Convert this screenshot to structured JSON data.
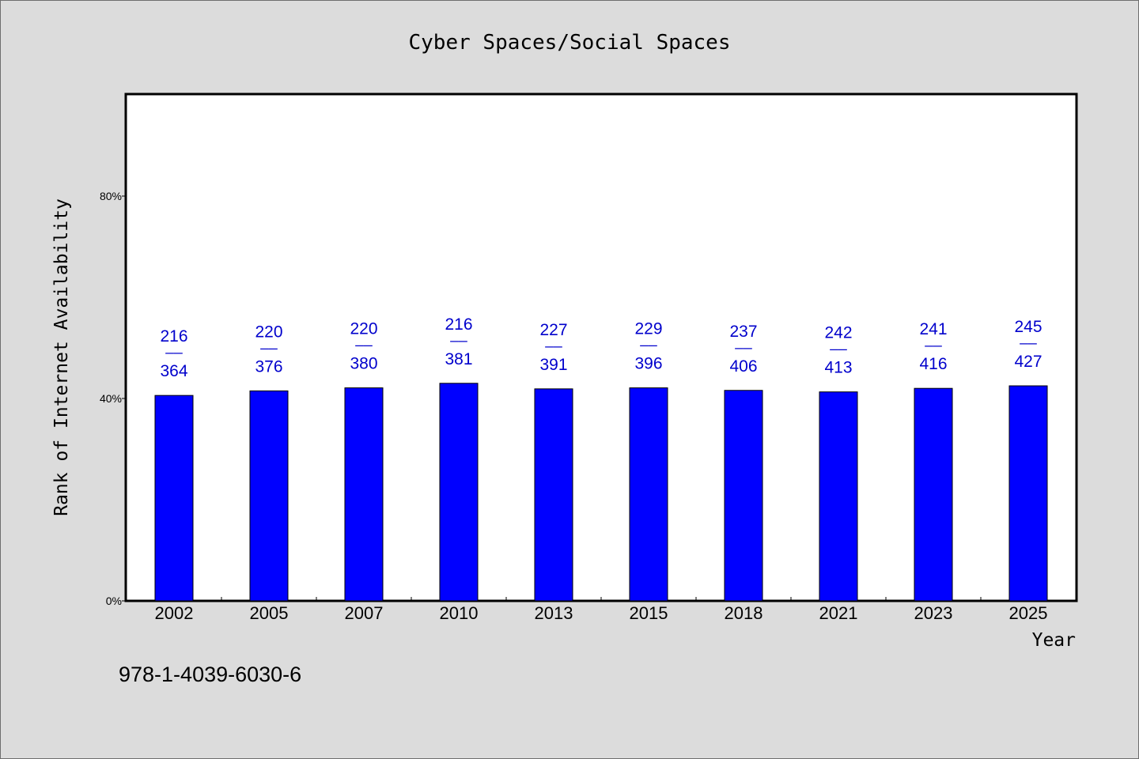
{
  "chart_data": {
    "type": "bar",
    "title": "Cyber Spaces/Social Spaces",
    "xlabel": "Year",
    "ylabel": "Rank of Internet Availability",
    "categories": [
      "2002",
      "2005",
      "2007",
      "2010",
      "2013",
      "2015",
      "2018",
      "2021",
      "2023",
      "2025"
    ],
    "values": [
      40.6,
      41.5,
      42.1,
      43.0,
      41.9,
      42.1,
      41.6,
      41.3,
      42.0,
      42.5
    ],
    "numerators": [
      "216",
      "220",
      "220",
      "216",
      "227",
      "229",
      "237",
      "242",
      "241",
      "245"
    ],
    "denominators": [
      "364",
      "376",
      "380",
      "381",
      "391",
      "396",
      "406",
      "413",
      "416",
      "427"
    ],
    "fraction_separator": "——",
    "ylim": [
      0,
      100
    ],
    "yticks": [
      0,
      40,
      80
    ],
    "ytick_labels": [
      "0%",
      "40%",
      "80%"
    ],
    "grid": false,
    "bar_color": "#0000ff",
    "label_color": "#0000cc"
  },
  "footer": {
    "isbn": "978-1-4039-6030-6"
  }
}
